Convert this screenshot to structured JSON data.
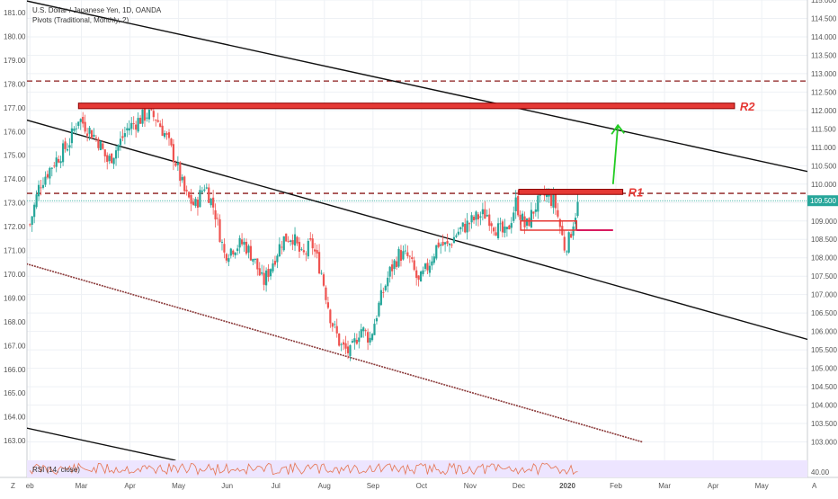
{
  "header": {
    "symbol_line": "U.S. Dollar / Japanese Yen, 1D, OANDA",
    "indicator_line": "Pivots (Traditional, Monthly, 2)"
  },
  "rsi": {
    "label": "RSI (14, close)",
    "value": "40.00"
  },
  "corners": {
    "bottom_left": "Z",
    "bottom_right": "A"
  },
  "colors": {
    "up": "#26a69a",
    "down": "#ef5350",
    "zone": "#e53935",
    "pivot": "#8b1a1a",
    "trend": "#111111",
    "arrow": "#22cc22",
    "rsi_bg": "#ede5ff",
    "rsi_line": "#e57350"
  },
  "chart_data": {
    "type": "candlestick",
    "title": "U.S. Dollar / Japanese Yen, 1D, OANDA",
    "left_axis": {
      "ticks": [
        "181.00",
        "180.00",
        "179.00",
        "178.00",
        "177.00",
        "176.00",
        "175.00",
        "174.00",
        "173.00",
        "172.00",
        "171.00",
        "170.00",
        "169.00",
        "168.00",
        "167.00",
        "166.00",
        "165.00",
        "164.00",
        "163.00"
      ]
    },
    "right_axis": {
      "ticks": [
        "115.000",
        "114.500",
        "114.000",
        "113.500",
        "113.000",
        "112.500",
        "112.000",
        "111.500",
        "111.000",
        "110.500",
        "110.000",
        "109.500",
        "109.000",
        "108.500",
        "108.000",
        "107.500",
        "107.000",
        "106.500",
        "106.000",
        "105.500",
        "105.000",
        "104.500",
        "104.000",
        "103.500",
        "103.000"
      ],
      "ylim": [
        102.5,
        115.0
      ]
    },
    "x_axis": {
      "labels": [
        "eb",
        "Mar",
        "Apr",
        "May",
        "Jun",
        "Jul",
        "Aug",
        "Sep",
        "Oct",
        "Nov",
        "Dec",
        "2020",
        "Feb",
        "Mar",
        "Apr",
        "May"
      ],
      "label_times": [
        0,
        1.06,
        2.06,
        3.06,
        4.06,
        5.06,
        6.06,
        7.06,
        8.06,
        9.06,
        10.06,
        11.06,
        12.06,
        13.06,
        14.06,
        15.06
      ]
    },
    "last_price": 109.55,
    "series": [
      {
        "kind": "close_path",
        "points": [
          [
            0.0,
            108.9
          ],
          [
            0.2,
            110.0
          ],
          [
            0.5,
            110.6
          ],
          [
            0.8,
            111.1
          ],
          [
            1.0,
            111.8
          ],
          [
            1.2,
            111.5
          ],
          [
            1.4,
            111.2
          ],
          [
            1.6,
            110.6
          ],
          [
            1.8,
            111.0
          ],
          [
            2.0,
            111.5
          ],
          [
            2.2,
            111.7
          ],
          [
            2.4,
            111.9
          ],
          [
            2.6,
            111.8
          ],
          [
            2.8,
            111.3
          ],
          [
            3.0,
            110.6
          ],
          [
            3.2,
            109.7
          ],
          [
            3.4,
            109.4
          ],
          [
            3.6,
            110.0
          ],
          [
            3.8,
            109.3
          ],
          [
            4.0,
            108.1
          ],
          [
            4.2,
            108.3
          ],
          [
            4.4,
            108.4
          ],
          [
            4.6,
            108.0
          ],
          [
            4.8,
            107.3
          ],
          [
            5.0,
            107.9
          ],
          [
            5.2,
            108.5
          ],
          [
            5.4,
            108.6
          ],
          [
            5.6,
            108.0
          ],
          [
            5.8,
            108.4
          ],
          [
            6.0,
            107.6
          ],
          [
            6.2,
            106.3
          ],
          [
            6.4,
            105.6
          ],
          [
            6.6,
            105.4
          ],
          [
            6.8,
            106.1
          ],
          [
            7.0,
            105.8
          ],
          [
            7.2,
            106.8
          ],
          [
            7.4,
            107.6
          ],
          [
            7.6,
            108.1
          ],
          [
            7.8,
            108.0
          ],
          [
            8.0,
            107.3
          ],
          [
            8.2,
            107.8
          ],
          [
            8.4,
            108.4
          ],
          [
            8.6,
            108.3
          ],
          [
            8.8,
            108.7
          ],
          [
            9.0,
            108.9
          ],
          [
            9.2,
            109.1
          ],
          [
            9.4,
            109.2
          ],
          [
            9.6,
            108.8
          ],
          [
            9.8,
            108.6
          ],
          [
            10.0,
            109.5
          ],
          [
            10.2,
            108.8
          ],
          [
            10.4,
            109.4
          ],
          [
            10.6,
            109.7
          ],
          [
            10.8,
            109.5
          ],
          [
            11.0,
            108.3
          ],
          [
            11.1,
            108.5
          ],
          [
            11.2,
            109.1
          ],
          [
            11.3,
            109.55
          ]
        ]
      }
    ],
    "levels": [
      {
        "name": "pivot_top",
        "price": 112.8,
        "style": "dashed"
      },
      {
        "name": "pivot_r1",
        "price": 109.75,
        "style": "dashed"
      },
      {
        "name": "last_price_line",
        "price": 109.55,
        "style": "dotted"
      }
    ],
    "zones": [
      {
        "label": "R2",
        "t0": 1.0,
        "t1": 14.5,
        "p_low": 112.05,
        "p_high": 112.2
      },
      {
        "label": "R1",
        "t0": 10.06,
        "t1": 12.2,
        "p_low": 109.72,
        "p_high": 109.86
      }
    ],
    "range_box": {
      "t0": 10.1,
      "t1": 11.25,
      "price_top": 109.0,
      "price_bottom": 108.75,
      "extend_to": 12.0
    },
    "trendlines": [
      {
        "name": "upper_channel",
        "from": [
          -0.5,
          115.1
        ],
        "to": [
          16.5,
          110.2
        ]
      },
      {
        "name": "middle_channel",
        "from": [
          -0.5,
          111.9
        ],
        "to": [
          16.5,
          105.6
        ]
      },
      {
        "name": "lower_channel_dashed",
        "from": [
          -0.5,
          108.0
        ],
        "to": [
          12.6,
          103.0
        ]
      },
      {
        "name": "bottom_left_line",
        "from": [
          -0.5,
          103.5
        ],
        "to": [
          3.0,
          102.5
        ]
      }
    ],
    "arrow": {
      "from": [
        12.0,
        110.0
      ],
      "to": [
        12.1,
        111.6
      ]
    },
    "annotations": [
      "R2",
      "R1"
    ]
  }
}
